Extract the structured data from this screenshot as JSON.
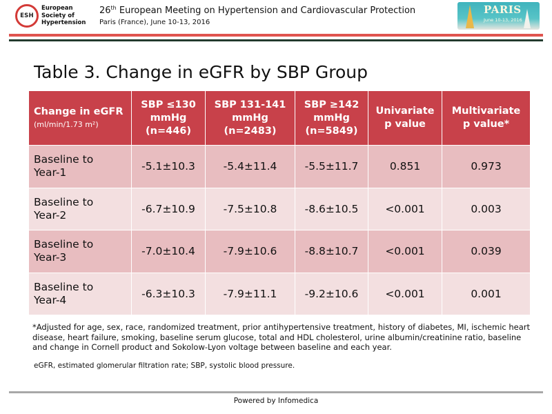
{
  "header": {
    "logo_text": "ESH",
    "society_name": "European Society of Hypertension",
    "meeting_ordinal": "26",
    "meeting_ordinal_suffix": "th",
    "meeting_title": "European Meeting on Hypertension and Cardiovascular Protection",
    "meeting_subtitle": "Paris (France), June 10-13, 2016",
    "badge_title": "PARIS",
    "badge_date": "June 10-13, 2016"
  },
  "slide_title": "Table 3. Change in eGFR by SBP Group",
  "table": {
    "header": {
      "col1_title": "Change in eGFR",
      "col1_unit": "(ml/min/1.73 m²)",
      "col2": [
        "SBP ≤130",
        "mmHg",
        "(n=446)"
      ],
      "col3": [
        "SBP 131-141",
        "mmHg",
        "(n=2483)"
      ],
      "col4": [
        "SBP ≥142",
        "mmHg",
        "(n=5849)"
      ],
      "col5": [
        "Univariate",
        "p value"
      ],
      "col6": [
        "Multivariate",
        "p value*"
      ]
    },
    "rows": [
      {
        "label": [
          "Baseline to",
          "Year-1"
        ],
        "values": [
          "-5.1±10.3",
          "-5.4±11.4",
          "-5.5±11.7",
          "0.851",
          "0.973"
        ]
      },
      {
        "label": [
          "Baseline to",
          "Year-2"
        ],
        "values": [
          "-6.7±10.9",
          "-7.5±10.8",
          "-8.6±10.5",
          "<0.001",
          "0.003"
        ]
      },
      {
        "label": [
          "Baseline to",
          "Year-3"
        ],
        "values": [
          "-7.0±10.4",
          "-7.9±10.6",
          "-8.8±10.7",
          "<0.001",
          "0.039"
        ]
      },
      {
        "label": [
          "Baseline to",
          "Year-4"
        ],
        "values": [
          "-6.3±10.3",
          "-7.9±11.1",
          "-9.2±10.6",
          "<0.001",
          "0.001"
        ]
      }
    ]
  },
  "footnote": "*Adjusted for age, sex, race, randomized treatment, prior antihypertensive treatment, history of diabetes, MI, ischemic heart disease, heart failure, smoking, baseline serum glucose, total and HDL cholesterol, urine albumin/creatinine ratio, baseline and change in Cornell product and Sokolow-Lyon voltage between baseline and each year.",
  "abbreviations": "eGFR, estimated glomerular filtration rate; SBP, systolic blood pressure.",
  "powered_by": "Powered by Infomedica",
  "colors": {
    "header_red": "#c8414a",
    "row_dark": "#e8bdc0",
    "row_light": "#f3dfe0",
    "rule_red": "#e0544f",
    "rule_dark": "#233a2e"
  }
}
